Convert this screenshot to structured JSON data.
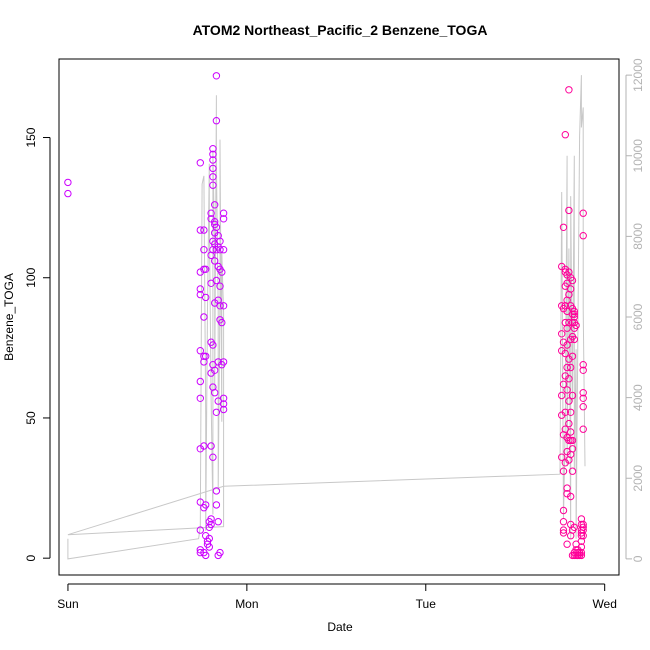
{
  "chart_data": {
    "type": "scatter",
    "title": "ATOM2 Northeast_Pacific_2 Benzene_TOGA",
    "xlabel": "Date",
    "ylabel": "Benzene_TOGA",
    "x_ticks": [
      "Sun",
      "Mon",
      "Tue",
      "Wed"
    ],
    "x_range_days": [
      -0.05,
      3.08
    ],
    "ylim": [
      -6,
      178
    ],
    "y_ticks": [
      0,
      50,
      100,
      150
    ],
    "y2lim": [
      -400,
      12400
    ],
    "y2_ticks": [
      0,
      2000,
      4000,
      6000,
      8000,
      10000,
      12000
    ],
    "grid": false,
    "colors": {
      "early_points": "#cc00ff",
      "late_points": "#ff0099",
      "secondary_line": "#c8c8c8",
      "axis": "#000000",
      "right_axis": "#b3b3b3"
    },
    "series": [
      {
        "color": "#cc00ff",
        "points": [
          [
            0.0,
            134
          ],
          [
            0.0,
            130
          ],
          [
            0.74,
            141
          ],
          [
            0.74,
            117
          ],
          [
            0.74,
            102
          ],
          [
            0.74,
            96
          ],
          [
            0.74,
            94
          ],
          [
            0.74,
            74
          ],
          [
            0.74,
            63
          ],
          [
            0.74,
            57
          ],
          [
            0.74,
            39
          ],
          [
            0.74,
            20
          ],
          [
            0.74,
            10
          ],
          [
            0.74,
            3
          ],
          [
            0.74,
            2
          ],
          [
            0.76,
            117
          ],
          [
            0.76,
            110
          ],
          [
            0.76,
            103
          ],
          [
            0.76,
            86
          ],
          [
            0.76,
            72
          ],
          [
            0.76,
            70
          ],
          [
            0.76,
            40
          ],
          [
            0.76,
            18
          ],
          [
            0.76,
            2
          ],
          [
            0.77,
            103
          ],
          [
            0.77,
            93
          ],
          [
            0.77,
            72
          ],
          [
            0.77,
            19
          ],
          [
            0.77,
            8
          ],
          [
            0.77,
            1
          ],
          [
            0.78,
            6
          ],
          [
            0.78,
            5
          ],
          [
            0.79,
            13
          ],
          [
            0.79,
            11
          ],
          [
            0.79,
            7
          ],
          [
            0.79,
            4
          ],
          [
            0.8,
            123
          ],
          [
            0.8,
            121
          ],
          [
            0.8,
            108
          ],
          [
            0.8,
            98
          ],
          [
            0.8,
            77
          ],
          [
            0.8,
            66
          ],
          [
            0.8,
            40
          ],
          [
            0.8,
            14
          ],
          [
            0.8,
            12
          ],
          [
            0.81,
            146
          ],
          [
            0.81,
            144
          ],
          [
            0.81,
            142
          ],
          [
            0.81,
            139
          ],
          [
            0.81,
            136
          ],
          [
            0.81,
            133
          ],
          [
            0.81,
            113
          ],
          [
            0.81,
            110
          ],
          [
            0.81,
            76
          ],
          [
            0.81,
            69
          ],
          [
            0.81,
            61
          ],
          [
            0.81,
            36
          ],
          [
            0.82,
            126
          ],
          [
            0.82,
            120
          ],
          [
            0.82,
            119
          ],
          [
            0.82,
            116
          ],
          [
            0.82,
            112
          ],
          [
            0.82,
            106
          ],
          [
            0.82,
            91
          ],
          [
            0.82,
            67
          ],
          [
            0.82,
            59
          ],
          [
            0.83,
            172
          ],
          [
            0.83,
            156
          ],
          [
            0.83,
            118
          ],
          [
            0.83,
            110
          ],
          [
            0.83,
            99
          ],
          [
            0.83,
            52
          ],
          [
            0.83,
            24
          ],
          [
            0.83,
            19
          ],
          [
            0.84,
            115
          ],
          [
            0.84,
            111
          ],
          [
            0.84,
            104
          ],
          [
            0.84,
            92
          ],
          [
            0.84,
            70
          ],
          [
            0.84,
            56
          ],
          [
            0.84,
            13
          ],
          [
            0.84,
            1
          ],
          [
            0.85,
            113
          ],
          [
            0.85,
            110
          ],
          [
            0.85,
            103
          ],
          [
            0.85,
            97
          ],
          [
            0.85,
            90
          ],
          [
            0.85,
            85
          ],
          [
            0.85,
            2
          ],
          [
            0.86,
            102
          ],
          [
            0.86,
            84
          ],
          [
            0.86,
            69
          ],
          [
            0.87,
            123
          ],
          [
            0.87,
            121
          ],
          [
            0.87,
            110
          ],
          [
            0.87,
            90
          ],
          [
            0.87,
            70
          ],
          [
            0.87,
            57
          ],
          [
            0.87,
            55
          ],
          [
            0.87,
            53
          ]
        ]
      },
      {
        "color": "#ff0099",
        "points": [
          [
            2.76,
            104
          ],
          [
            2.76,
            90
          ],
          [
            2.76,
            80
          ],
          [
            2.76,
            74
          ],
          [
            2.76,
            58
          ],
          [
            2.76,
            51
          ],
          [
            2.76,
            36
          ],
          [
            2.77,
            118
          ],
          [
            2.77,
            89
          ],
          [
            2.77,
            77
          ],
          [
            2.77,
            62
          ],
          [
            2.77,
            44
          ],
          [
            2.77,
            31
          ],
          [
            2.77,
            17
          ],
          [
            2.77,
            13
          ],
          [
            2.77,
            10
          ],
          [
            2.77,
            9
          ],
          [
            2.78,
            151
          ],
          [
            2.78,
            103
          ],
          [
            2.78,
            102
          ],
          [
            2.78,
            97
          ],
          [
            2.78,
            90
          ],
          [
            2.78,
            84
          ],
          [
            2.78,
            73
          ],
          [
            2.78,
            65
          ],
          [
            2.78,
            52
          ],
          [
            2.78,
            46
          ],
          [
            2.78,
            34
          ],
          [
            2.79,
            101
          ],
          [
            2.79,
            98
          ],
          [
            2.79,
            92
          ],
          [
            2.79,
            88
          ],
          [
            2.79,
            82
          ],
          [
            2.79,
            76
          ],
          [
            2.79,
            68
          ],
          [
            2.79,
            60
          ],
          [
            2.79,
            43
          ],
          [
            2.79,
            38
          ],
          [
            2.79,
            25
          ],
          [
            2.79,
            23
          ],
          [
            2.79,
            5
          ],
          [
            2.8,
            167
          ],
          [
            2.8,
            124
          ],
          [
            2.8,
            102
          ],
          [
            2.8,
            94
          ],
          [
            2.8,
            84
          ],
          [
            2.8,
            71
          ],
          [
            2.8,
            64
          ],
          [
            2.8,
            56
          ],
          [
            2.8,
            48
          ],
          [
            2.8,
            42
          ],
          [
            2.8,
            35
          ],
          [
            2.81,
            100
          ],
          [
            2.81,
            96
          ],
          [
            2.81,
            90
          ],
          [
            2.81,
            78
          ],
          [
            2.81,
            68
          ],
          [
            2.81,
            52
          ],
          [
            2.81,
            45
          ],
          [
            2.81,
            42
          ],
          [
            2.81,
            37
          ],
          [
            2.81,
            22
          ],
          [
            2.81,
            12
          ],
          [
            2.81,
            8
          ],
          [
            2.82,
            99
          ],
          [
            2.82,
            89
          ],
          [
            2.82,
            87
          ],
          [
            2.82,
            84
          ],
          [
            2.82,
            79
          ],
          [
            2.82,
            72
          ],
          [
            2.82,
            58
          ],
          [
            2.82,
            42
          ],
          [
            2.82,
            39
          ],
          [
            2.82,
            31
          ],
          [
            2.82,
            10
          ],
          [
            2.82,
            1
          ],
          [
            2.83,
            88
          ],
          [
            2.83,
            87
          ],
          [
            2.83,
            86
          ],
          [
            2.83,
            84
          ],
          [
            2.83,
            82
          ],
          [
            2.83,
            78
          ],
          [
            2.83,
            11
          ],
          [
            2.83,
            2
          ],
          [
            2.83,
            1
          ],
          [
            2.84,
            83
          ],
          [
            2.84,
            5
          ],
          [
            2.84,
            3
          ],
          [
            2.84,
            1
          ],
          [
            2.85,
            3
          ],
          [
            2.85,
            2
          ],
          [
            2.85,
            1
          ],
          [
            2.85,
            1
          ],
          [
            2.86,
            2
          ],
          [
            2.86,
            1
          ],
          [
            2.87,
            14
          ],
          [
            2.87,
            12
          ],
          [
            2.87,
            10
          ],
          [
            2.87,
            9
          ],
          [
            2.87,
            8
          ],
          [
            2.87,
            6
          ],
          [
            2.87,
            4
          ],
          [
            2.87,
            2
          ],
          [
            2.87,
            1
          ],
          [
            2.88,
            123
          ],
          [
            2.88,
            115
          ],
          [
            2.88,
            69
          ],
          [
            2.88,
            67
          ],
          [
            2.88,
            59
          ],
          [
            2.88,
            57
          ],
          [
            2.88,
            54
          ],
          [
            2.88,
            46
          ],
          [
            2.88,
            12
          ],
          [
            2.88,
            11
          ],
          [
            2.88,
            10
          ],
          [
            2.88,
            8
          ]
        ]
      },
      {
        "type": "line",
        "axis": "right",
        "color": "#c8c8c8",
        "points": [
          [
            0.0,
            500
          ],
          [
            0.0,
            0
          ],
          [
            0.73,
            500
          ],
          [
            0.74,
            800
          ],
          [
            0.75,
            9300
          ],
          [
            0.76,
            9500
          ],
          [
            0.77,
            3500
          ],
          [
            0.77,
            700
          ],
          [
            0.78,
            6200
          ],
          [
            0.79,
            9800
          ],
          [
            0.79,
            8600
          ],
          [
            0.8,
            4000
          ],
          [
            0.81,
            1100
          ],
          [
            0.81,
            10100
          ],
          [
            0.82,
            7600
          ],
          [
            0.82,
            4200
          ],
          [
            0.83,
            11500
          ],
          [
            0.83,
            9800
          ],
          [
            0.84,
            6200
          ],
          [
            0.84,
            1700
          ],
          [
            0.85,
            6600
          ],
          [
            0.85,
            10400
          ],
          [
            0.86,
            3400
          ],
          [
            0.86,
            7600
          ],
          [
            0.87,
            6100
          ],
          [
            0.87,
            800
          ],
          [
            0.0,
            600
          ],
          [
            0.87,
            1800
          ],
          [
            2.75,
            2100
          ],
          [
            2.76,
            9100
          ],
          [
            2.77,
            1000
          ],
          [
            2.78,
            3400
          ],
          [
            2.79,
            10000
          ],
          [
            2.79,
            2300
          ],
          [
            2.8,
            7700
          ],
          [
            2.81,
            500
          ],
          [
            2.81,
            9000
          ],
          [
            2.82,
            3900
          ],
          [
            2.83,
            10000
          ],
          [
            2.83,
            2200
          ],
          [
            2.84,
            5200
          ],
          [
            2.84,
            500
          ],
          [
            2.86,
            10500
          ],
          [
            2.87,
            12000
          ],
          [
            2.87,
            10700
          ],
          [
            2.88,
            11200
          ],
          [
            2.88,
            6200
          ],
          [
            2.89,
            2300
          ]
        ]
      }
    ]
  }
}
